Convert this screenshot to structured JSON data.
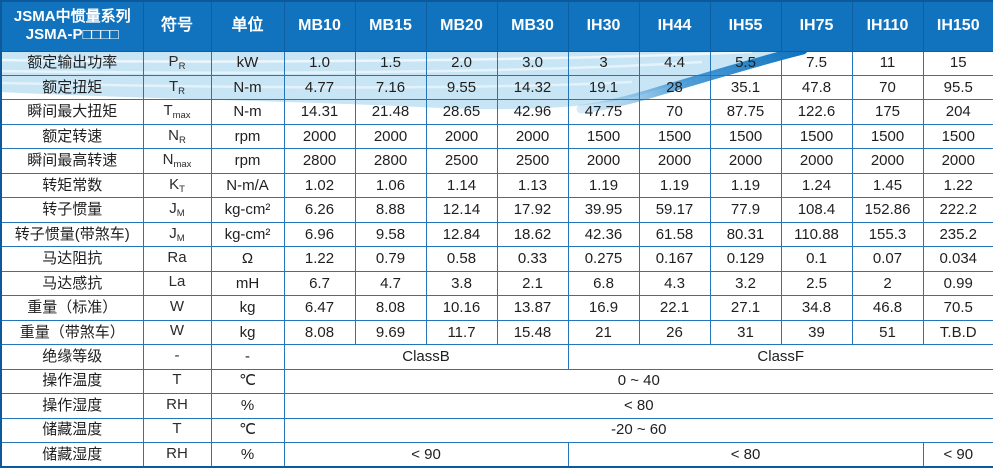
{
  "header": {
    "title_line1": "JSMA中惯量系列",
    "title_line2": "JSMA-P□□□□",
    "symbol_col": "符号",
    "unit_col": "单位",
    "models": [
      "MB10",
      "MB15",
      "MB20",
      "MB30",
      "IH30",
      "IH44",
      "IH55",
      "IH75",
      "IH110",
      "IH150"
    ]
  },
  "rows": [
    {
      "label": "额定输出功率",
      "sym": "P",
      "sym_sub": "R",
      "unit": "kW",
      "values": [
        "1.0",
        "1.5",
        "2.0",
        "3.0",
        "3",
        "4.4",
        "5.5",
        "7.5",
        "11",
        "15"
      ]
    },
    {
      "label": "额定扭矩",
      "sym": "T",
      "sym_sub": "R",
      "unit": "N-m",
      "values": [
        "4.77",
        "7.16",
        "9.55",
        "14.32",
        "19.1",
        "28",
        "35.1",
        "47.8",
        "70",
        "95.5"
      ]
    },
    {
      "label": "瞬间最大扭矩",
      "sym": "T",
      "sym_sub": "max",
      "unit": "N-m",
      "values": [
        "14.31",
        "21.48",
        "28.65",
        "42.96",
        "47.75",
        "70",
        "87.75",
        "122.6",
        "175",
        "204"
      ]
    },
    {
      "label": "额定转速",
      "sym": "N",
      "sym_sub": "R",
      "unit": "rpm",
      "values": [
        "2000",
        "2000",
        "2000",
        "2000",
        "1500",
        "1500",
        "1500",
        "1500",
        "1500",
        "1500"
      ]
    },
    {
      "label": "瞬间最高转速",
      "sym": "N",
      "sym_sub": "max",
      "unit": "rpm",
      "values": [
        "2800",
        "2800",
        "2500",
        "2500",
        "2000",
        "2000",
        "2000",
        "2000",
        "2000",
        "2000"
      ]
    },
    {
      "label": "转矩常数",
      "sym": "K",
      "sym_sub": "T",
      "unit": "N-m/A",
      "values": [
        "1.02",
        "1.06",
        "1.14",
        "1.13",
        "1.19",
        "1.19",
        "1.19",
        "1.24",
        "1.45",
        "1.22"
      ]
    },
    {
      "label": "转子惯量",
      "sym": "J",
      "sym_sub": "M",
      "unit": "kg-cm²",
      "values": [
        "6.26",
        "8.88",
        "12.14",
        "17.92",
        "39.95",
        "59.17",
        "77.9",
        "108.4",
        "152.86",
        "222.2"
      ]
    },
    {
      "label": "转子惯量(带煞车)",
      "sym": "J",
      "sym_sub": "M",
      "unit": "kg-cm²",
      "values": [
        "6.96",
        "9.58",
        "12.84",
        "18.62",
        "42.36",
        "61.58",
        "80.31",
        "110.88",
        "155.3",
        "235.2"
      ]
    },
    {
      "label": "马达阻抗",
      "sym": "Ra",
      "sym_sub": "",
      "unit": "Ω",
      "values": [
        "1.22",
        "0.79",
        "0.58",
        "0.33",
        "0.275",
        "0.167",
        "0.129",
        "0.1",
        "0.07",
        "0.034"
      ]
    },
    {
      "label": "马达感抗",
      "sym": "La",
      "sym_sub": "",
      "unit": "mH",
      "values": [
        "6.7",
        "4.7",
        "3.8",
        "2.1",
        "6.8",
        "4.3",
        "3.2",
        "2.5",
        "2",
        "0.99"
      ]
    },
    {
      "label": "重量（标准）",
      "sym": "W",
      "sym_sub": "",
      "unit": "kg",
      "values": [
        "6.47",
        "8.08",
        "10.16",
        "13.87",
        "16.9",
        "22.1",
        "27.1",
        "34.8",
        "46.8",
        "70.5"
      ]
    },
    {
      "label": "重量（带煞车）",
      "sym": "W",
      "sym_sub": "",
      "unit": "kg",
      "values": [
        "8.08",
        "9.69",
        "11.7",
        "15.48",
        "21",
        "26",
        "31",
        "39",
        "51",
        "T.B.D"
      ]
    },
    {
      "label": "绝缘等级",
      "sym": "-",
      "sym_sub": "",
      "unit": "-",
      "values": [
        {
          "text": "ClassB",
          "span": 4
        },
        {
          "text": "ClassF",
          "span": 6
        }
      ]
    },
    {
      "label": "操作温度",
      "sym": "T",
      "sym_sub": "",
      "unit": "℃",
      "values": [
        {
          "text": "0 ~ 40",
          "span": 10
        }
      ]
    },
    {
      "label": "操作湿度",
      "sym": "RH",
      "sym_sub": "",
      "unit": "%",
      "values": [
        {
          "text": "< 80",
          "span": 10
        }
      ]
    },
    {
      "label": "储藏温度",
      "sym": "T",
      "sym_sub": "",
      "unit": "℃",
      "values": [
        {
          "text": "-20 ~ 60",
          "span": 10
        }
      ]
    },
    {
      "label": "储藏湿度",
      "sym": "RH",
      "sym_sub": "",
      "unit": "%",
      "values": [
        {
          "text": "< 90",
          "span": 4
        },
        {
          "text": "< 80",
          "span": 5
        },
        {
          "text": "< 90",
          "span": 1
        }
      ]
    }
  ],
  "colors": {
    "header_blue": "#1173BD",
    "grid_blue": "#2476B9",
    "outer_border": "#0C5A9C",
    "wave_light": "#C8E5F5",
    "wave_dark": "#1579C8",
    "text": "#1F1F1F"
  }
}
